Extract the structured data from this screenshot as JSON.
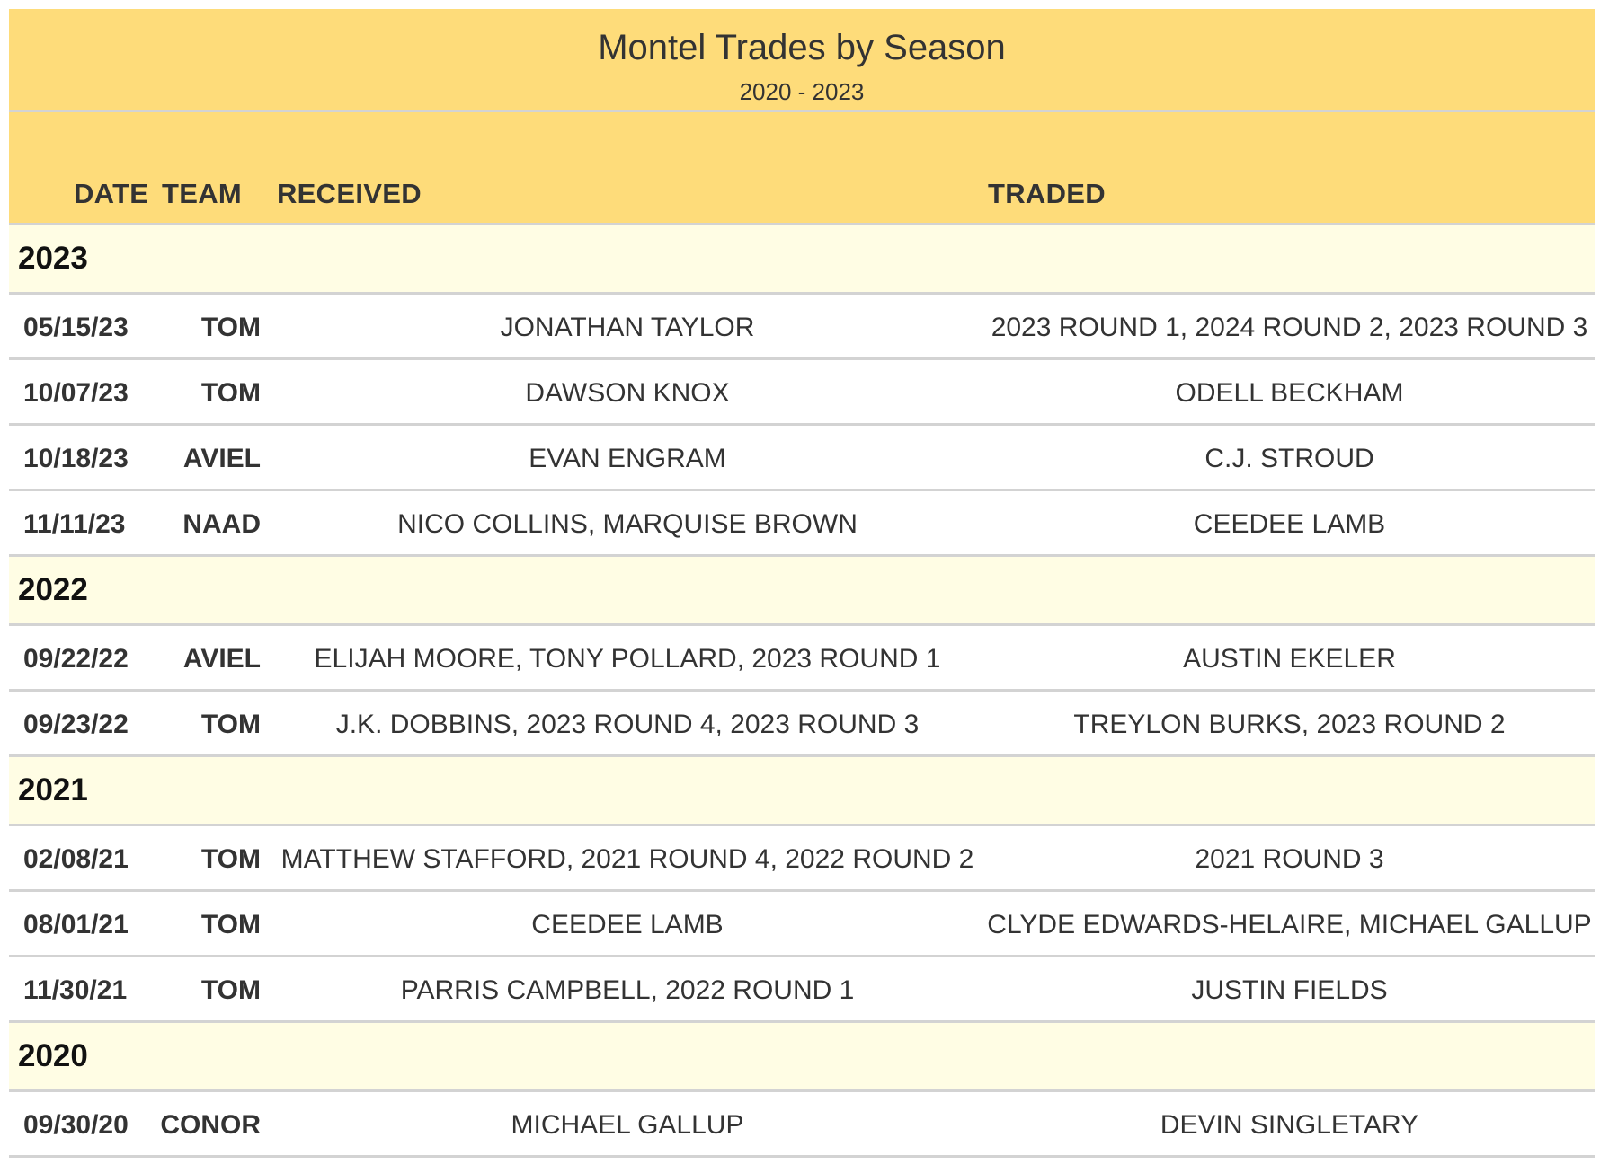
{
  "title": "Montel Trades by Season",
  "subtitle": "2020 - 2023",
  "columns": {
    "date": "DATE",
    "team": "TEAM",
    "received": "RECEIVED",
    "traded": "TRADED"
  },
  "groups": [
    {
      "season": "2023",
      "rows": [
        {
          "date": "05/15/23",
          "team": "TOM",
          "received": "JONATHAN TAYLOR",
          "traded": "2023 ROUND 1, 2024 ROUND 2, 2023 ROUND 3"
        },
        {
          "date": "10/07/23",
          "team": "TOM",
          "received": "DAWSON KNOX",
          "traded": "ODELL BECKHAM"
        },
        {
          "date": "10/18/23",
          "team": "AVIEL",
          "received": "EVAN ENGRAM",
          "traded": "C.J. STROUD"
        },
        {
          "date": "11/11/23",
          "team": "NAAD",
          "received": "NICO COLLINS, MARQUISE BROWN",
          "traded": "CEEDEE LAMB"
        }
      ]
    },
    {
      "season": "2022",
      "rows": [
        {
          "date": "09/22/22",
          "team": "AVIEL",
          "received": "ELIJAH MOORE, TONY POLLARD, 2023 ROUND 1",
          "traded": "AUSTIN EKELER"
        },
        {
          "date": "09/23/22",
          "team": "TOM",
          "received": "J.K. DOBBINS, 2023 ROUND 4, 2023 ROUND 3",
          "traded": "TREYLON BURKS, 2023 ROUND 2"
        }
      ]
    },
    {
      "season": "2021",
      "rows": [
        {
          "date": "02/08/21",
          "team": "TOM",
          "received": "MATTHEW STAFFORD, 2021 ROUND 4, 2022 ROUND 2",
          "traded": "2021 ROUND 3"
        },
        {
          "date": "08/01/21",
          "team": "TOM",
          "received": "CEEDEE LAMB",
          "traded": "CLYDE EDWARDS-HELAIRE, MICHAEL GALLUP"
        },
        {
          "date": "11/30/21",
          "team": "TOM",
          "received": "PARRIS CAMPBELL, 2022 ROUND 1",
          "traded": "JUSTIN FIELDS"
        }
      ]
    },
    {
      "season": "2020",
      "rows": [
        {
          "date": "09/30/20",
          "team": "CONOR",
          "received": "MICHAEL GALLUP",
          "traded": "DEVIN SINGLETARY"
        }
      ]
    }
  ],
  "colors": {
    "header_bg": "#fedc7a",
    "group_bg": "#fffde4",
    "divider": "#d3d3d3",
    "text": "#333333"
  }
}
